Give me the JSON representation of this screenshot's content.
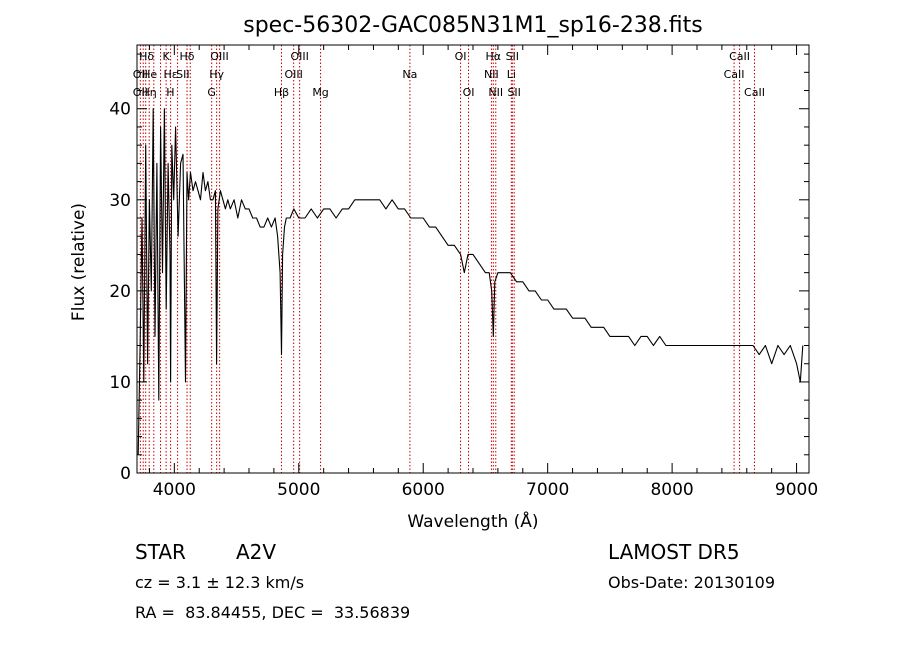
{
  "chart_data": {
    "type": "line",
    "title": "spec-56302-GAC085N31M1_sp16-238.fits",
    "xlabel": "Wavelength (Å)",
    "ylabel": "Flux (relative)",
    "xlim": [
      3700,
      9100
    ],
    "ylim": [
      0,
      47
    ],
    "x_ticks": [
      "4000",
      "5000",
      "6000",
      "7000",
      "8000",
      "9000"
    ],
    "x_tick_values": [
      4000,
      5000,
      6000,
      7000,
      8000,
      9000
    ],
    "y_ticks": [
      "0",
      "10",
      "20",
      "30",
      "40"
    ],
    "y_tick_values": [
      0,
      10,
      20,
      30,
      40
    ],
    "grid": false,
    "series": [
      {
        "color": "#000000",
        "x": [
          3710,
          3725,
          3740,
          3755,
          3770,
          3785,
          3800,
          3815,
          3830,
          3845,
          3860,
          3875,
          3890,
          3905,
          3920,
          3935,
          3950,
          3965,
          3970,
          3980,
          3995,
          4010,
          4030,
          4050,
          4070,
          4090,
          4102,
          4115,
          4130,
          4150,
          4170,
          4190,
          4210,
          4230,
          4250,
          4270,
          4290,
          4310,
          4330,
          4340,
          4350,
          4370,
          4390,
          4410,
          4430,
          4450,
          4480,
          4510,
          4540,
          4570,
          4600,
          4630,
          4660,
          4690,
          4720,
          4750,
          4780,
          4810,
          4830,
          4850,
          4861,
          4870,
          4885,
          4900,
          4930,
          4960,
          5000,
          5050,
          5100,
          5150,
          5200,
          5250,
          5300,
          5350,
          5400,
          5450,
          5500,
          5550,
          5600,
          5650,
          5700,
          5750,
          5800,
          5850,
          5900,
          5950,
          6000,
          6050,
          6100,
          6150,
          6200,
          6250,
          6300,
          6330,
          6360,
          6400,
          6450,
          6500,
          6530,
          6550,
          6563,
          6575,
          6600,
          6650,
          6700,
          6750,
          6800,
          6850,
          6900,
          6950,
          7000,
          7050,
          7100,
          7150,
          7200,
          7250,
          7300,
          7350,
          7400,
          7450,
          7500,
          7550,
          7600,
          7650,
          7700,
          7750,
          7800,
          7850,
          7900,
          7950,
          8000,
          8050,
          8100,
          8150,
          8200,
          8250,
          8300,
          8350,
          8400,
          8450,
          8500,
          8550,
          8600,
          8650,
          8700,
          8750,
          8800,
          8850,
          8900,
          8950,
          9000,
          9030,
          9050
        ],
        "y": [
          2,
          14,
          28,
          10,
          36,
          12,
          30,
          20,
          40,
          15,
          34,
          8,
          38,
          22,
          40,
          18,
          34,
          24,
          10,
          36,
          30,
          38,
          26,
          34,
          35,
          10,
          33,
          30,
          33,
          31,
          32,
          31,
          30,
          33,
          31,
          32,
          30,
          30,
          31,
          12,
          29,
          31,
          30,
          29,
          30,
          29,
          30,
          28,
          30,
          29,
          29,
          28,
          28,
          27,
          27,
          28,
          27,
          28,
          26,
          22,
          13,
          24,
          27,
          28,
          28,
          29,
          28,
          28,
          29,
          28,
          29,
          29,
          28,
          29,
          29,
          30,
          30,
          30,
          30,
          30,
          29,
          30,
          29,
          29,
          28,
          28,
          28,
          27,
          27,
          26,
          25,
          25,
          24,
          22,
          24,
          24,
          23,
          22,
          22,
          20,
          15,
          21,
          22,
          22,
          22,
          21,
          21,
          20,
          20,
          19,
          19,
          18,
          18,
          18,
          17,
          17,
          17,
          16,
          16,
          16,
          15,
          15,
          15,
          15,
          14,
          15,
          15,
          14,
          15,
          14,
          14,
          14,
          14,
          14,
          14,
          14,
          14,
          14,
          14,
          14,
          14,
          14,
          14,
          14,
          13,
          14,
          12,
          14,
          13,
          14,
          12,
          10,
          14
        ]
      }
    ],
    "line_markers": {
      "x": [
        3727,
        3750,
        3770,
        3798,
        3835,
        3889,
        3934,
        3970,
        4026,
        4102,
        4128,
        4300,
        4340,
        4364,
        4861,
        4959,
        5007,
        5175,
        5893,
        6300,
        6364,
        6548,
        6563,
        6583,
        6708,
        6716,
        6731,
        8498,
        8542,
        8662
      ],
      "color": "#cc0000"
    },
    "line_labels": {
      "row1": [
        {
          "text": "Hδ",
          "at": 3777
        },
        {
          "text": "K",
          "at": 3934
        },
        {
          "text": "Hδ",
          "at": 4102
        },
        {
          "text": "OIII",
          "at": 4363
        },
        {
          "text": "OIII",
          "at": 5007
        },
        {
          "text": "OI",
          "at": 6300
        },
        {
          "text": "Hα",
          "at": 6563
        },
        {
          "text": "SII",
          "at": 6716
        },
        {
          "text": "CaII",
          "at": 8542
        }
      ],
      "row2": [
        {
          "text": "OII",
          "at": 3727
        },
        {
          "text": "He",
          "at": 3802
        },
        {
          "text": "Hε",
          "at": 3970
        },
        {
          "text": "SII",
          "at": 4069
        },
        {
          "text": "Hγ",
          "at": 4340
        },
        {
          "text": "OIII",
          "at": 4959
        },
        {
          "text": "Na",
          "at": 5893
        },
        {
          "text": "NII",
          "at": 6548
        },
        {
          "text": "Li",
          "at": 6708
        },
        {
          "text": "CaII",
          "at": 8498
        }
      ],
      "row3": [
        {
          "text": "OII",
          "at": 3727
        },
        {
          "text": "Hη",
          "at": 3797
        },
        {
          "text": "H",
          "at": 3968
        },
        {
          "text": "G",
          "at": 4300
        },
        {
          "text": "Hβ",
          "at": 4861
        },
        {
          "text": "Mg",
          "at": 5175
        },
        {
          "text": "OI",
          "at": 6364
        },
        {
          "text": "NII",
          "at": 6583
        },
        {
          "text": "SII",
          "at": 6731
        },
        {
          "text": "CaII",
          "at": 8662
        }
      ]
    }
  },
  "info": {
    "class_label": "STAR",
    "subclass": "A2V",
    "survey": "LAMOST DR5",
    "cz": "cz = 3.1 ± 12.3 km/s",
    "obs_date": "Obs-Date: 20130109",
    "coords": "RA =  83.84455, DEC =  33.56839"
  }
}
